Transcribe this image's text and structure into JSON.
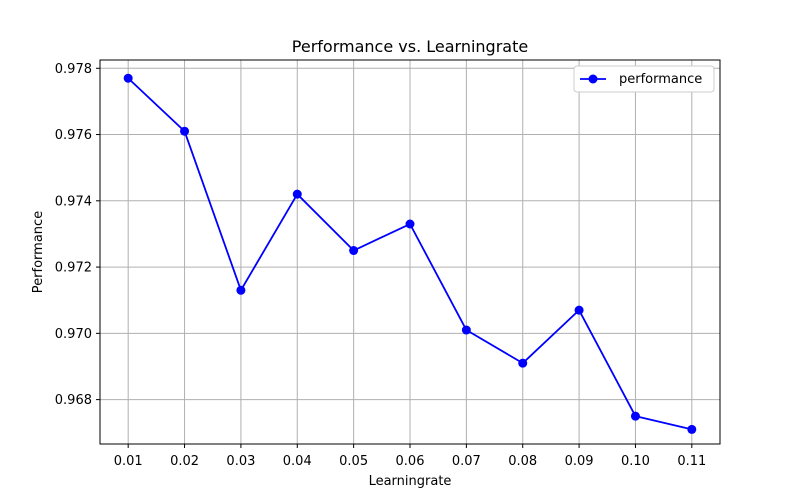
{
  "chart_data": {
    "type": "line",
    "title": "Performance vs. Learningrate",
    "xlabel": "Learningrate",
    "ylabel": "Performance",
    "x_tick_labels": [
      "0.01",
      "0.02",
      "0.03",
      "0.04",
      "0.05",
      "0.06",
      "0.07",
      "0.08",
      "0.09",
      "0.10",
      "0.11"
    ],
    "y_tick_labels": [
      "0.968",
      "0.970",
      "0.972",
      "0.974",
      "0.976",
      "0.978"
    ],
    "y_ticks": [
      0.968,
      0.97,
      0.972,
      0.974,
      0.976,
      0.978
    ],
    "xlim": [
      0.005,
      0.115
    ],
    "ylim": [
      0.96666,
      0.97825
    ],
    "grid": true,
    "legend_position": "top-right",
    "series": [
      {
        "name": "performance",
        "color": "#0000ff",
        "marker": "circle",
        "x": [
          0.01,
          0.02,
          0.03,
          0.04,
          0.05,
          0.06,
          0.07,
          0.08,
          0.09,
          0.1,
          0.11
        ],
        "y": [
          0.9777,
          0.9761,
          0.9713,
          0.9742,
          0.9725,
          0.9733,
          0.9701,
          0.9691,
          0.9707,
          0.9675,
          0.9671
        ]
      }
    ]
  }
}
